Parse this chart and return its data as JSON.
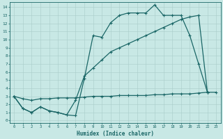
{
  "xlabel": "Humidex (Indice chaleur)",
  "bg_color": "#c8e8e5",
  "line_color": "#1a6666",
  "grid_color": "#a8ccc9",
  "xlim": [
    -0.5,
    23.5
  ],
  "ylim": [
    -0.3,
    14.6
  ],
  "xticks": [
    0,
    1,
    2,
    3,
    4,
    5,
    6,
    7,
    8,
    9,
    10,
    11,
    12,
    13,
    14,
    15,
    16,
    17,
    18,
    19,
    20,
    21,
    22,
    23
  ],
  "yticks": [
    0,
    1,
    2,
    3,
    4,
    5,
    6,
    7,
    8,
    9,
    10,
    11,
    12,
    13,
    14
  ],
  "upper_x": [
    0,
    1,
    2,
    3,
    4,
    5,
    6,
    7,
    8,
    9,
    10,
    11,
    12,
    13,
    14,
    15,
    16,
    17,
    18,
    19,
    20,
    21,
    22
  ],
  "upper_y": [
    3.0,
    1.5,
    1.0,
    1.7,
    1.2,
    1.0,
    0.7,
    0.6,
    5.2,
    10.5,
    10.3,
    12.1,
    13.0,
    13.3,
    13.3,
    13.3,
    14.3,
    13.0,
    13.0,
    13.0,
    10.5,
    7.0,
    3.5
  ],
  "diag_x": [
    0,
    1,
    2,
    3,
    4,
    5,
    6,
    7,
    8,
    9,
    10,
    11,
    12,
    13,
    14,
    15,
    16,
    17,
    18,
    19,
    20,
    21,
    22
  ],
  "diag_y": [
    3.0,
    1.5,
    1.0,
    1.7,
    1.2,
    1.0,
    0.7,
    2.5,
    5.5,
    6.5,
    7.5,
    8.5,
    9.0,
    9.5,
    10.0,
    10.5,
    11.0,
    11.5,
    12.0,
    12.5,
    12.8,
    13.0,
    3.5
  ],
  "flat_x": [
    0,
    1,
    2,
    3,
    4,
    5,
    6,
    7,
    8,
    9,
    10,
    11,
    12,
    13,
    14,
    15,
    16,
    17,
    18,
    19,
    20,
    21,
    22,
    23
  ],
  "flat_y": [
    3.0,
    2.7,
    2.5,
    2.7,
    2.7,
    2.8,
    2.8,
    2.8,
    2.9,
    3.0,
    3.0,
    3.0,
    3.1,
    3.1,
    3.1,
    3.1,
    3.2,
    3.2,
    3.3,
    3.3,
    3.3,
    3.4,
    3.5,
    3.5
  ]
}
